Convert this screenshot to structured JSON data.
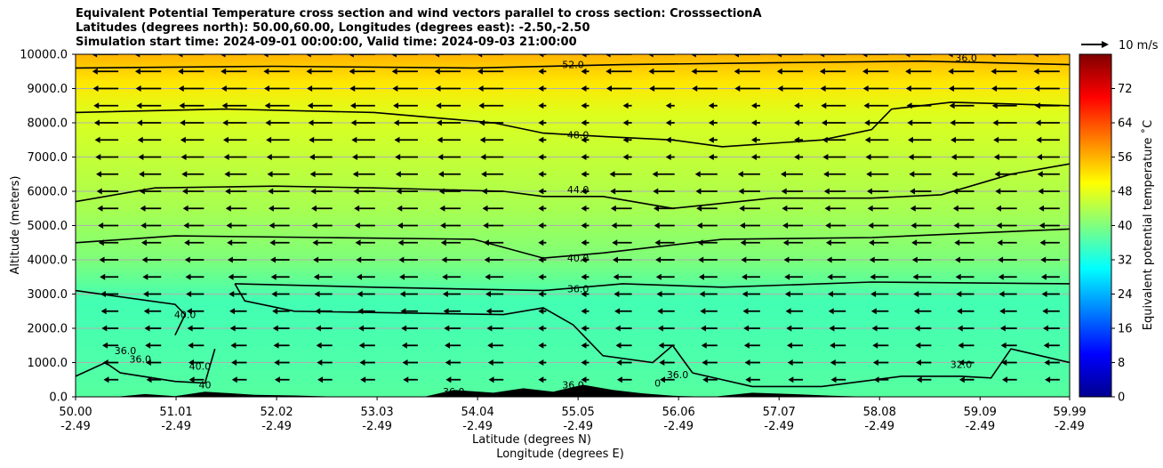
{
  "title_lines": [
    "Equivalent Potential Temperature cross section and wind vectors parallel to cross section: CrosssectionA",
    "Latitudes (degrees north): 50.00,60.00, Longitudes (degrees east): -2.50,-2.50",
    "Simulation start time: 2024-09-01 00:00:00, Valid time: 2024-09-03 21:00:00"
  ],
  "chart_data": {
    "type": "heatmap",
    "title": "Equivalent Potential Temperature cross section and wind vectors parallel to cross section: CrosssectionA",
    "xlabel": "Latitude (degrees N)",
    "xlabel2": "Longitude (degrees E)",
    "ylabel": "Altitude (meters)",
    "xlim": [
      50.0,
      59.99
    ],
    "ylim": [
      0,
      10000
    ],
    "x_ticks_lat": [
      "50.00",
      "51.01",
      "52.02",
      "53.03",
      "54.04",
      "55.05",
      "56.06",
      "57.07",
      "58.08",
      "59.09",
      "59.99"
    ],
    "x_ticks_lon": [
      "-2.49",
      "-2.49",
      "-2.49",
      "-2.49",
      "-2.49",
      "-2.49",
      "-2.49",
      "-2.49",
      "-2.49",
      "-2.49",
      "-2.49"
    ],
    "y_ticks": [
      "0.0",
      "1000.0",
      "2000.0",
      "3000.0",
      "4000.0",
      "5000.0",
      "6000.0",
      "7000.0",
      "8000.0",
      "9000.0",
      "10000.0"
    ],
    "y_tick_values": [
      0,
      1000,
      2000,
      3000,
      4000,
      5000,
      6000,
      7000,
      8000,
      9000,
      10000
    ],
    "gridlines": "horizontal",
    "colorbar": {
      "label": "Equivalent potential temperature ˚C",
      "range": [
        0,
        80
      ],
      "ticks": [
        "0",
        "8",
        "16",
        "24",
        "32",
        "40",
        "48",
        "56",
        "64",
        "72"
      ],
      "tick_values": [
        0,
        8,
        16,
        24,
        32,
        40,
        48,
        56,
        64,
        72
      ]
    },
    "quiver_key": "10 m/s",
    "contour_labels": [
      {
        "text": "52.0",
        "lat": 55.0,
        "alt": 9700
      },
      {
        "text": "48.0",
        "lat": 55.05,
        "alt": 7650
      },
      {
        "text": "44.0",
        "lat": 55.05,
        "alt": 6050
      },
      {
        "text": "40.0",
        "lat": 55.05,
        "alt": 4050
      },
      {
        "text": "36.0",
        "lat": 55.05,
        "alt": 3150
      },
      {
        "text": "40.0",
        "lat": 51.1,
        "alt": 2400
      },
      {
        "text": "36.0",
        "lat": 50.5,
        "alt": 1350
      },
      {
        "text": "36.0",
        "lat": 50.65,
        "alt": 1100
      },
      {
        "text": "40.0",
        "lat": 51.25,
        "alt": 900
      },
      {
        "text": "40",
        "lat": 51.3,
        "alt": 350
      },
      {
        "text": "36.0",
        "lat": 53.8,
        "alt": 150
      },
      {
        "text": "36.0",
        "lat": 55.0,
        "alt": 350
      },
      {
        "text": "36.0",
        "lat": 56.05,
        "alt": 650
      },
      {
        "text": "0",
        "lat": 55.85,
        "alt": 400
      },
      {
        "text": "32.0",
        "lat": 58.9,
        "alt": 950
      },
      {
        "text": "36.0",
        "lat": 58.95,
        "alt": 9900
      }
    ],
    "contours": [
      {
        "level": 52,
        "points": [
          [
            50,
            9600
          ],
          [
            52,
            9650
          ],
          [
            54,
            9600
          ],
          [
            55.5,
            9700
          ],
          [
            57,
            9750
          ],
          [
            58.5,
            9800
          ],
          [
            59.99,
            9700
          ]
        ]
      },
      {
        "level": 48,
        "points": [
          [
            50,
            8300
          ],
          [
            51.5,
            8400
          ],
          [
            53,
            8300
          ],
          [
            54.2,
            8000
          ],
          [
            54.7,
            7700
          ],
          [
            55.3,
            7600
          ],
          [
            56.0,
            7500
          ],
          [
            56.5,
            7300
          ],
          [
            57.5,
            7500
          ],
          [
            58,
            7800
          ],
          [
            58.2,
            8400
          ],
          [
            58.8,
            8600
          ],
          [
            59.99,
            8500
          ]
        ]
      },
      {
        "level": 44,
        "points": [
          [
            50,
            5700
          ],
          [
            50.8,
            6100
          ],
          [
            52,
            6150
          ],
          [
            53,
            6100
          ],
          [
            54.3,
            6000
          ],
          [
            54.7,
            5850
          ],
          [
            55.3,
            5850
          ],
          [
            56,
            5500
          ],
          [
            57,
            5800
          ],
          [
            58,
            5800
          ],
          [
            58.7,
            5900
          ],
          [
            59.4,
            6500
          ],
          [
            59.99,
            6800
          ]
        ]
      },
      {
        "level": 40,
        "points": [
          [
            50,
            4500
          ],
          [
            51,
            4700
          ],
          [
            52.5,
            4650
          ],
          [
            54,
            4600
          ],
          [
            54.7,
            4050
          ],
          [
            55.3,
            4200
          ],
          [
            56.5,
            4600
          ],
          [
            58,
            4650
          ],
          [
            59.99,
            4900
          ]
        ]
      },
      {
        "level": 36,
        "points": [
          [
            51.6,
            3300
          ],
          [
            53,
            3200
          ],
          [
            54.7,
            3100
          ],
          [
            55.5,
            3300
          ],
          [
            56.5,
            3200
          ],
          [
            58,
            3350
          ],
          [
            59.99,
            3300
          ]
        ]
      },
      {
        "level": 36,
        "points": [
          [
            51.6,
            3300
          ],
          [
            51.7,
            2800
          ],
          [
            52.2,
            2500
          ],
          [
            54.3,
            2400
          ],
          [
            54.7,
            2600
          ],
          [
            55.0,
            2100
          ],
          [
            55.3,
            1200
          ],
          [
            55.8,
            1000
          ],
          [
            56.0,
            1500
          ],
          [
            56.2,
            700
          ]
        ]
      },
      {
        "level": 40,
        "points": [
          [
            50,
            3100
          ],
          [
            51,
            2700
          ],
          [
            51.1,
            2400
          ],
          [
            51.0,
            1800
          ]
        ]
      },
      {
        "level": 36,
        "points": [
          [
            50,
            600
          ],
          [
            50.3,
            1000
          ],
          [
            50.45,
            700
          ],
          [
            51.0,
            450
          ],
          [
            51.3,
            400
          ],
          [
            51.4,
            1400
          ]
        ]
      },
      {
        "level": 36,
        "points": [
          [
            56.2,
            700
          ],
          [
            56.8,
            300
          ],
          [
            57.5,
            300
          ],
          [
            58.3,
            600
          ],
          [
            58.9,
            600
          ],
          [
            59.2,
            550
          ],
          [
            59.4,
            1400
          ],
          [
            59.99,
            1000
          ]
        ]
      }
    ],
    "terrain": [
      [
        50,
        0
      ],
      [
        50.4,
        0
      ],
      [
        50.7,
        80
      ],
      [
        51.0,
        20
      ],
      [
        51.3,
        150
      ],
      [
        51.8,
        60
      ],
      [
        52.2,
        40
      ],
      [
        52.7,
        0
      ],
      [
        53.5,
        0
      ],
      [
        53.8,
        200
      ],
      [
        54.2,
        120
      ],
      [
        54.5,
        250
      ],
      [
        54.8,
        150
      ],
      [
        55.1,
        350
      ],
      [
        55.4,
        200
      ],
      [
        55.7,
        100
      ],
      [
        56.0,
        30
      ],
      [
        56.4,
        0
      ],
      [
        56.8,
        120
      ],
      [
        57.2,
        80
      ],
      [
        57.6,
        30
      ],
      [
        58.0,
        0
      ],
      [
        59.99,
        0
      ]
    ]
  }
}
